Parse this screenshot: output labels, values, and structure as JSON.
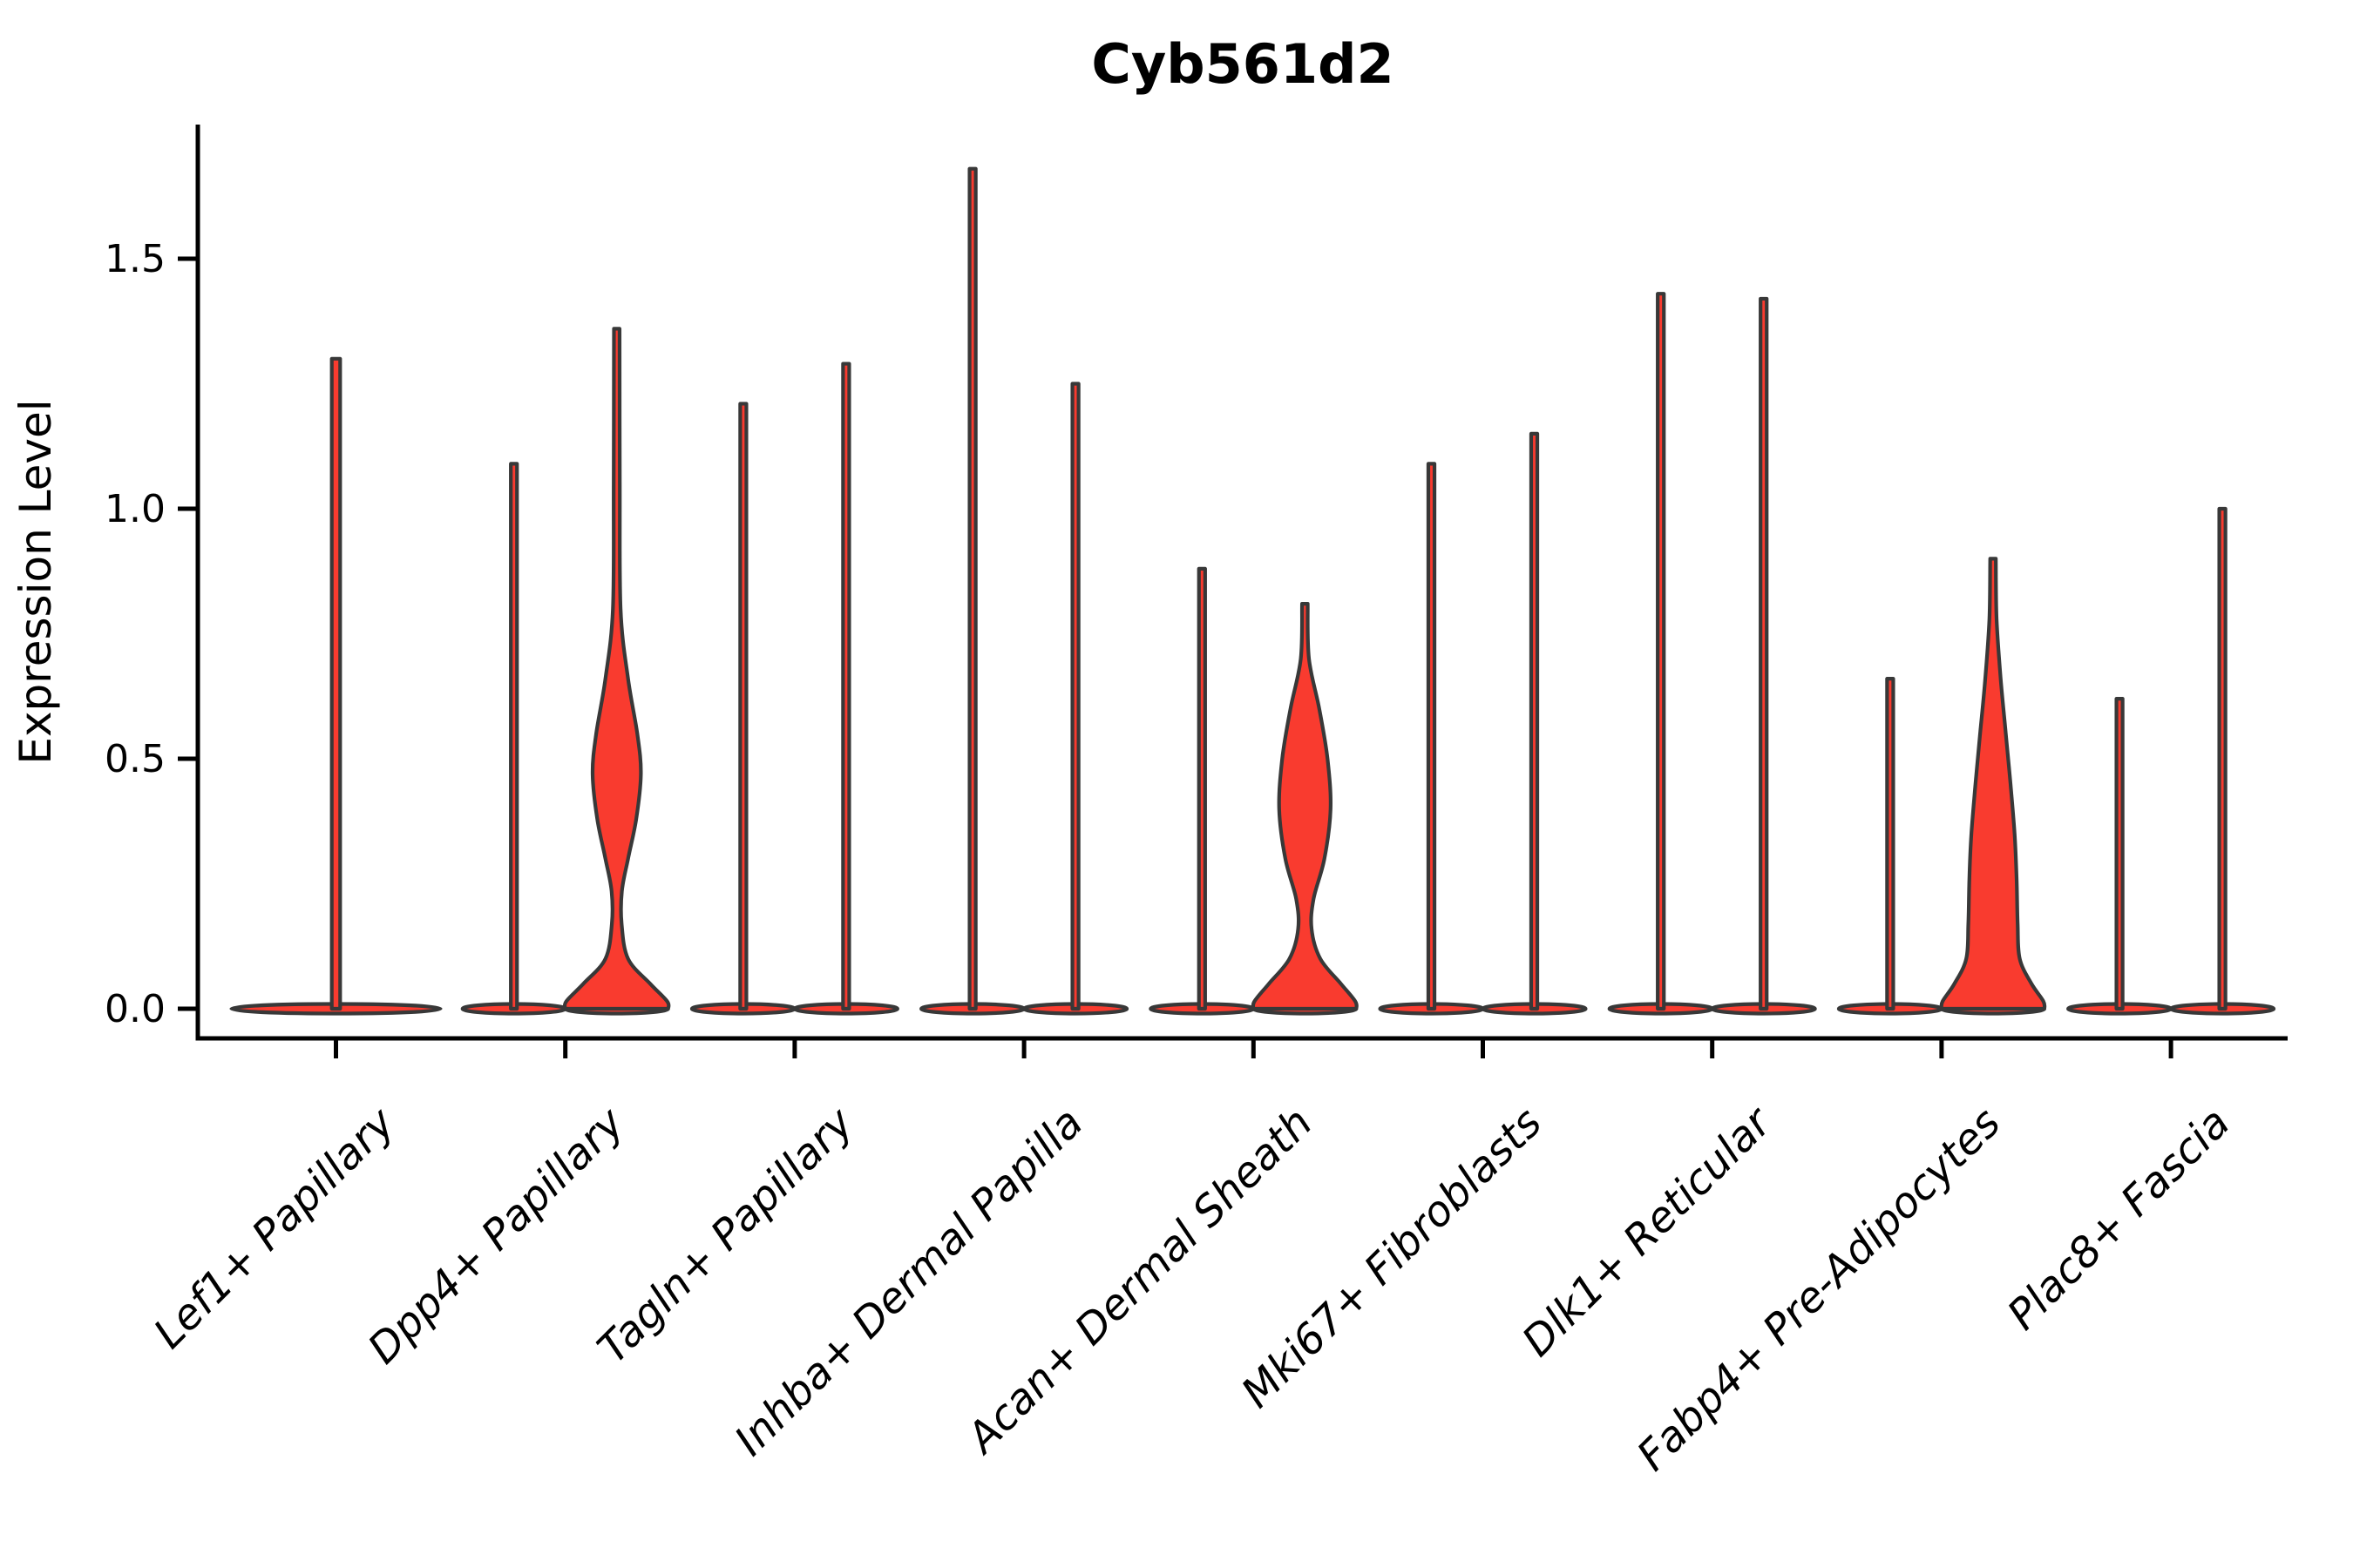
{
  "figure": {
    "title": "Cyb561d2",
    "background_color": "#ffffff"
  },
  "chart_data": {
    "type": "violin",
    "title": "Cyb561d2",
    "xlabel": "",
    "ylabel": "Expression Level",
    "ylim": [
      -0.06,
      1.77
    ],
    "yticks": [
      0.0,
      0.5,
      1.0,
      1.5
    ],
    "ytick_labels": [
      "0.0",
      "0.5",
      "1.0",
      "1.5"
    ],
    "grid": false,
    "legend": "none",
    "categories": [
      "Lef1+ Papillary",
      "Dpp4+ Papillary",
      "Tagln+ Papillary",
      "Inhba+ Dermal Papilla",
      "Acan+ Dermal Sheath",
      "Mki67+ Fibroblasts",
      "Dlk1+ Reticular",
      "Fabp4+ Pre-Adipocytes",
      "Plac8+ Fascia"
    ],
    "style": {
      "violin_fill": "#F93B2F",
      "violin_edge": "#383838",
      "axis_color": "#000000",
      "edge_width": 4.2
    },
    "violins": [
      {
        "category_index": 0,
        "category": "Lef1+ Papillary",
        "slot": "full",
        "max_expression": 1.3,
        "shape": "spike",
        "profile": [
          [
            1.3,
            0.04
          ],
          [
            0.0,
            0.04
          ]
        ]
      },
      {
        "category_index": 1,
        "category": "Dpp4+ Papillary",
        "slot": "left",
        "max_expression": 1.09,
        "shape": "spike",
        "profile": [
          [
            1.09,
            0.06
          ],
          [
            0.0,
            0.06
          ]
        ]
      },
      {
        "category_index": 1,
        "category": "Dpp4+ Papillary",
        "slot": "right",
        "max_expression": 1.36,
        "shape": "bulged",
        "profile": [
          [
            1.36,
            0.055
          ],
          [
            1.05,
            0.06
          ],
          [
            0.8,
            0.075
          ],
          [
            0.66,
            0.22
          ],
          [
            0.55,
            0.4
          ],
          [
            0.47,
            0.47
          ],
          [
            0.38,
            0.38
          ],
          [
            0.3,
            0.22
          ],
          [
            0.235,
            0.1
          ],
          [
            0.17,
            0.095
          ],
          [
            0.1,
            0.22
          ],
          [
            0.05,
            0.65
          ],
          [
            0.015,
            0.98
          ],
          [
            0.0,
            1.0
          ]
        ]
      },
      {
        "category_index": 2,
        "category": "Tagln+ Papillary",
        "slot": "left",
        "max_expression": 1.21,
        "shape": "spike",
        "profile": [
          [
            1.21,
            0.06
          ],
          [
            0.0,
            0.06
          ]
        ]
      },
      {
        "category_index": 2,
        "category": "Tagln+ Papillary",
        "slot": "right",
        "max_expression": 1.29,
        "shape": "spike",
        "profile": [
          [
            1.29,
            0.06
          ],
          [
            0.0,
            0.06
          ]
        ]
      },
      {
        "category_index": 3,
        "category": "Inhba+ Dermal Papilla",
        "slot": "left",
        "max_expression": 1.68,
        "shape": "spike",
        "profile": [
          [
            1.68,
            0.06
          ],
          [
            0.0,
            0.06
          ]
        ]
      },
      {
        "category_index": 3,
        "category": "Inhba+ Dermal Papilla",
        "slot": "right",
        "max_expression": 1.25,
        "shape": "spike",
        "profile": [
          [
            1.25,
            0.06
          ],
          [
            0.0,
            0.06
          ]
        ]
      },
      {
        "category_index": 4,
        "category": "Acan+ Dermal Sheath",
        "slot": "left",
        "max_expression": 0.88,
        "shape": "spike",
        "profile": [
          [
            0.88,
            0.06
          ],
          [
            0.0,
            0.06
          ]
        ]
      },
      {
        "category_index": 4,
        "category": "Acan+ Dermal Sheath",
        "slot": "right",
        "max_expression": 0.81,
        "shape": "bulged",
        "profile": [
          [
            0.81,
            0.055
          ],
          [
            0.7,
            0.08
          ],
          [
            0.6,
            0.28
          ],
          [
            0.5,
            0.44
          ],
          [
            0.4,
            0.5
          ],
          [
            0.3,
            0.38
          ],
          [
            0.22,
            0.17
          ],
          [
            0.16,
            0.13
          ],
          [
            0.1,
            0.3
          ],
          [
            0.05,
            0.7
          ],
          [
            0.015,
            0.98
          ],
          [
            0.0,
            1.0
          ]
        ]
      },
      {
        "category_index": 5,
        "category": "Mki67+ Fibroblasts",
        "slot": "left",
        "max_expression": 1.09,
        "shape": "spike",
        "profile": [
          [
            1.09,
            0.06
          ],
          [
            0.0,
            0.06
          ]
        ]
      },
      {
        "category_index": 5,
        "category": "Mki67+ Fibroblasts",
        "slot": "right",
        "max_expression": 1.15,
        "shape": "spike",
        "profile": [
          [
            1.15,
            0.06
          ],
          [
            0.0,
            0.06
          ]
        ]
      },
      {
        "category_index": 6,
        "category": "Dlk1+ Reticular",
        "slot": "left",
        "max_expression": 1.43,
        "shape": "spike",
        "profile": [
          [
            1.43,
            0.06
          ],
          [
            0.0,
            0.06
          ]
        ]
      },
      {
        "category_index": 6,
        "category": "Dlk1+ Reticular",
        "slot": "right",
        "max_expression": 1.42,
        "shape": "spike",
        "profile": [
          [
            1.42,
            0.06
          ],
          [
            0.0,
            0.06
          ]
        ]
      },
      {
        "category_index": 7,
        "category": "Fabp4+ Pre-Adipocytes",
        "slot": "left",
        "max_expression": 0.66,
        "shape": "spike",
        "profile": [
          [
            0.66,
            0.06
          ],
          [
            0.0,
            0.06
          ]
        ]
      },
      {
        "category_index": 7,
        "category": "Fabp4+ Pre-Adipocytes",
        "slot": "right",
        "max_expression": 0.9,
        "shape": "bulged",
        "profile": [
          [
            0.9,
            0.055
          ],
          [
            0.78,
            0.07
          ],
          [
            0.66,
            0.15
          ],
          [
            0.55,
            0.25
          ],
          [
            0.45,
            0.34
          ],
          [
            0.35,
            0.42
          ],
          [
            0.26,
            0.46
          ],
          [
            0.17,
            0.48
          ],
          [
            0.1,
            0.52
          ],
          [
            0.05,
            0.75
          ],
          [
            0.015,
            0.98
          ],
          [
            0.0,
            1.0
          ]
        ]
      },
      {
        "category_index": 8,
        "category": "Plac8+ Fascia",
        "slot": "left",
        "max_expression": 0.62,
        "shape": "spike",
        "profile": [
          [
            0.62,
            0.06
          ],
          [
            0.0,
            0.06
          ]
        ]
      },
      {
        "category_index": 8,
        "category": "Plac8+ Fascia",
        "slot": "right",
        "max_expression": 1.0,
        "shape": "spike",
        "profile": [
          [
            1.0,
            0.06
          ],
          [
            0.0,
            0.06
          ]
        ]
      }
    ]
  }
}
